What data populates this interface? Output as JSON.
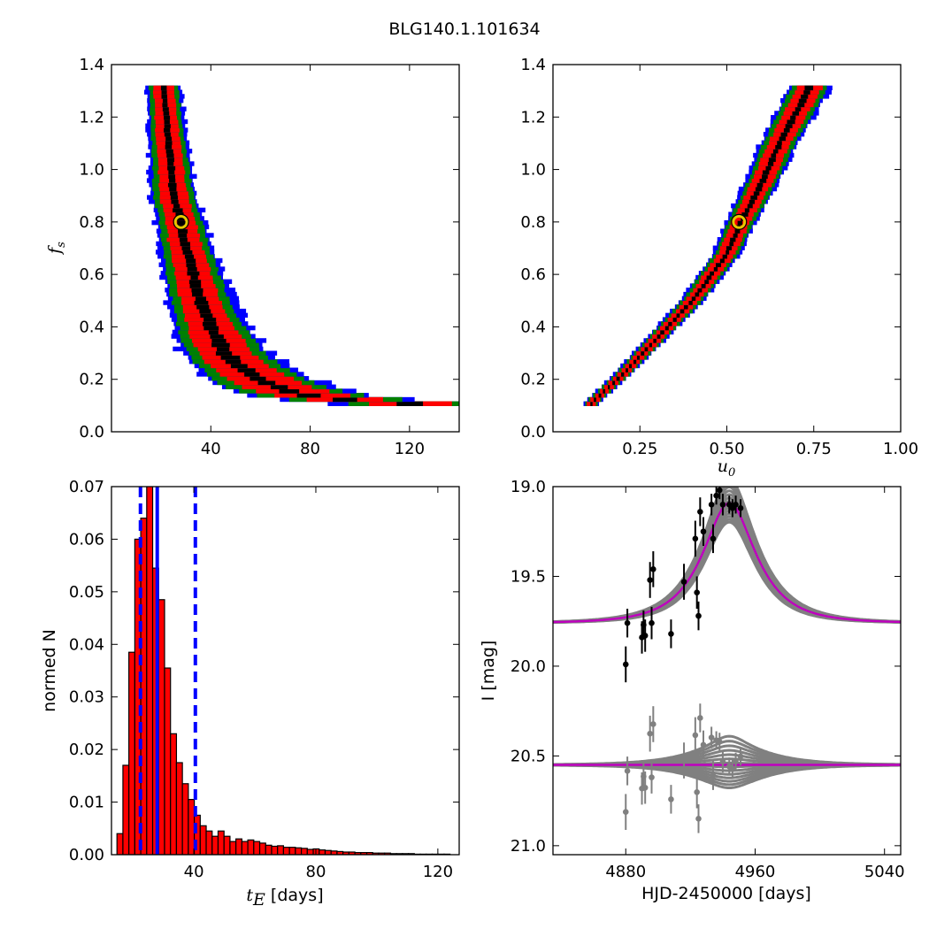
{
  "figure": {
    "title": "BLG140.1.101634"
  },
  "colors": {
    "blue": "#0000ff",
    "green": "#008000",
    "red": "#ff0000",
    "black": "#000000",
    "marker_ring": "#e6c800",
    "model_gray": "#808080",
    "model_line": "#bf00bf",
    "hist_edge": "#000000",
    "hist_fill": "#ff0000",
    "dash": "#0000ff"
  },
  "chart_data": [
    {
      "panel": "top-left",
      "type": "heatmap",
      "title": "",
      "xlabel": "",
      "ylabel": "f_s",
      "ylabel_text": "f",
      "ylabel_sub": "s",
      "xlim": [
        0,
        140
      ],
      "ylim": [
        0.0,
        1.4
      ],
      "xticks": [
        "40",
        "80",
        "120"
      ],
      "xtick_values": [
        40,
        80,
        120
      ],
      "yticks": [
        "0.0",
        "0.2",
        "0.4",
        "0.6",
        "0.8",
        "1.0",
        "1.2",
        "1.4"
      ],
      "ytick_values": [
        0.0,
        0.2,
        0.4,
        0.6,
        0.8,
        1.0,
        1.2,
        1.4
      ],
      "contour_levels": [
        "blue",
        "green",
        "red",
        "black"
      ],
      "band_ridge": [
        [
          21,
          1.32
        ],
        [
          22,
          1.2
        ],
        [
          24,
          1.0
        ],
        [
          25,
          0.9
        ],
        [
          28,
          0.8
        ],
        [
          30,
          0.7
        ],
        [
          33,
          0.6
        ],
        [
          36,
          0.5
        ],
        [
          40,
          0.4
        ],
        [
          46,
          0.3
        ],
        [
          52,
          0.25
        ],
        [
          60,
          0.2
        ],
        [
          70,
          0.16
        ],
        [
          85,
          0.13
        ],
        [
          100,
          0.12
        ],
        [
          120,
          0.11
        ]
      ],
      "best_fit": {
        "x": 28,
        "y": 0.8
      },
      "grid": false
    },
    {
      "panel": "top-right",
      "type": "heatmap",
      "title": "",
      "xlabel": "u_0",
      "xlabel_text": "u",
      "xlabel_sub": "0",
      "ylabel": "",
      "xlim": [
        0.0,
        1.0
      ],
      "ylim": [
        0.0,
        1.4
      ],
      "xticks": [
        "0.25",
        "0.50",
        "0.75",
        "1.00"
      ],
      "xtick_values": [
        0.25,
        0.5,
        0.75,
        1.0
      ],
      "yticks": [
        "0.0",
        "0.2",
        "0.4",
        "0.6",
        "0.8",
        "1.0",
        "1.2",
        "1.4"
      ],
      "ytick_values": [
        0.0,
        0.2,
        0.4,
        0.6,
        0.8,
        1.0,
        1.2,
        1.4
      ],
      "contour_levels": [
        "blue",
        "green",
        "red",
        "black"
      ],
      "band_ridge": [
        [
          0.11,
          0.11
        ],
        [
          0.2,
          0.22
        ],
        [
          0.3,
          0.36
        ],
        [
          0.4,
          0.5
        ],
        [
          0.5,
          0.68
        ],
        [
          0.54,
          0.8
        ],
        [
          0.6,
          0.95
        ],
        [
          0.65,
          1.1
        ],
        [
          0.7,
          1.22
        ],
        [
          0.74,
          1.32
        ]
      ],
      "best_fit": {
        "x": 0.535,
        "y": 0.8
      },
      "grid": false
    },
    {
      "panel": "bottom-left",
      "type": "bar",
      "title": "",
      "xlabel": "t_E [days]",
      "xlabel_text": "t",
      "xlabel_sub": "E",
      "xlabel_suffix": " [days]",
      "ylabel": "normed N",
      "xlim": [
        13,
        127
      ],
      "ylim": [
        0.0,
        0.07
      ],
      "xticks": [
        "40",
        "80",
        "120"
      ],
      "xtick_values": [
        40,
        80,
        120
      ],
      "yticks": [
        "0.00",
        "0.01",
        "0.02",
        "0.03",
        "0.04",
        "0.05",
        "0.06",
        "0.07"
      ],
      "ytick_values": [
        0.0,
        0.01,
        0.02,
        0.03,
        0.04,
        0.05,
        0.06,
        0.07
      ],
      "bin_start": 14.8,
      "bin_width": 1.95,
      "values": [
        0.004,
        0.017,
        0.0385,
        0.06,
        0.064,
        0.075,
        0.0545,
        0.0485,
        0.0355,
        0.023,
        0.0175,
        0.0135,
        0.0105,
        0.0075,
        0.0055,
        0.0045,
        0.0035,
        0.0045,
        0.0035,
        0.0025,
        0.003,
        0.0025,
        0.0028,
        0.0025,
        0.0022,
        0.0018,
        0.0016,
        0.0017,
        0.0014,
        0.0014,
        0.0013,
        0.0012,
        0.001,
        0.0011,
        0.0009,
        0.0008,
        0.0007,
        0.0006,
        0.0005,
        0.0005,
        0.0004,
        0.0004,
        0.0004,
        0.0003,
        0.0003,
        0.0003,
        0.0002,
        0.0002,
        0.0002,
        0.0002,
        0.0001,
        0.0001,
        0.0001,
        0.0001,
        0.0001,
        0.0001
      ],
      "vlines": [
        {
          "x": 22.5,
          "style": "dashed"
        },
        {
          "x": 28,
          "style": "solid"
        },
        {
          "x": 40.5,
          "style": "dashed"
        }
      ],
      "grid": false
    },
    {
      "panel": "bottom-right",
      "type": "scatter",
      "title": "",
      "xlabel": "HJD-2450000 [days]",
      "ylabel": "I [mag]",
      "xlim": [
        4835,
        5050
      ],
      "ylim": [
        21.05,
        19.0
      ],
      "yaxis_inverted": true,
      "xticks": [
        "4880",
        "4960",
        "5040"
      ],
      "xtick_values": [
        4880,
        4960,
        5040
      ],
      "yticks": [
        "19.0",
        "19.5",
        "20.0",
        "20.5",
        "21.0"
      ],
      "ytick_values": [
        19.0,
        19.5,
        20.0,
        20.5,
        21.0
      ],
      "model": {
        "t0": 4944,
        "tE": 28,
        "u0": 0.535,
        "baseline": 19.76,
        "fs": 0.8
      },
      "residual_baseline": 20.55,
      "points": [
        {
          "t": 4880,
          "mag": 19.99,
          "err": 0.1
        },
        {
          "t": 4881,
          "mag": 19.76,
          "err": 0.08
        },
        {
          "t": 4890,
          "mag": 19.84,
          "err": 0.09
        },
        {
          "t": 4891,
          "mag": 19.77,
          "err": 0.08
        },
        {
          "t": 4892,
          "mag": 19.83,
          "err": 0.09
        },
        {
          "t": 4895,
          "mag": 19.52,
          "err": 0.1
        },
        {
          "t": 4897,
          "mag": 19.46,
          "err": 0.1
        },
        {
          "t": 4896,
          "mag": 19.76,
          "err": 0.09
        },
        {
          "t": 4908,
          "mag": 19.82,
          "err": 0.08
        },
        {
          "t": 4916,
          "mag": 19.53,
          "err": 0.1
        },
        {
          "t": 4923,
          "mag": 19.29,
          "err": 0.1
        },
        {
          "t": 4925,
          "mag": 19.72,
          "err": 0.08
        },
        {
          "t": 4924,
          "mag": 19.59,
          "err": 0.09
        },
        {
          "t": 4926,
          "mag": 19.14,
          "err": 0.08
        },
        {
          "t": 4928,
          "mag": 19.25,
          "err": 0.08
        },
        {
          "t": 4933,
          "mag": 19.1,
          "err": 0.06
        },
        {
          "t": 4934,
          "mag": 19.29,
          "err": 0.08
        },
        {
          "t": 4936,
          "mag": 19.05,
          "err": 0.05
        },
        {
          "t": 4938,
          "mag": 19.02,
          "err": 0.05
        },
        {
          "t": 4940,
          "mag": 19.1,
          "err": 0.06
        },
        {
          "t": 4944,
          "mag": 19.1,
          "err": 0.05
        },
        {
          "t": 4946,
          "mag": 19.12,
          "err": 0.05
        },
        {
          "t": 4948,
          "mag": 19.1,
          "err": 0.05
        },
        {
          "t": 4951,
          "mag": 19.12,
          "err": 0.05
        }
      ],
      "grid": false
    }
  ]
}
